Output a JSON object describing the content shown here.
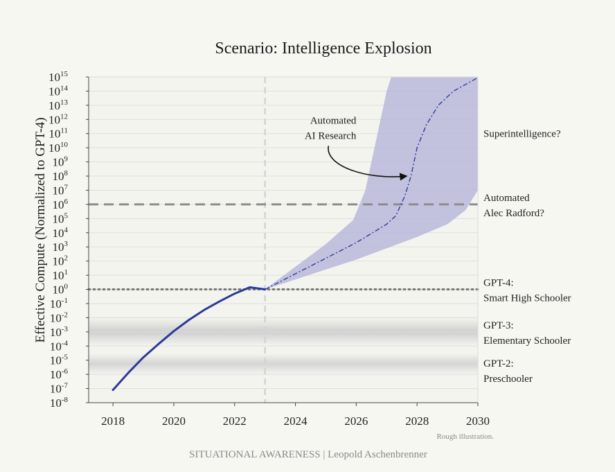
{
  "chart_data": {
    "type": "line",
    "title": "Scenario: Intelligence Explosion",
    "ylabel": "Effective Compute (Normalized to GPT-4)",
    "xlabel": "",
    "y_scale": "log10",
    "xlim": [
      2017.2,
      2030
    ],
    "ylim_exp": [
      -8,
      15
    ],
    "x_ticks": [
      "2018",
      "2020",
      "2022",
      "2024",
      "2026",
      "2028",
      "2030"
    ],
    "y_tick_base": "10",
    "y_tick_exponents": [
      "15",
      "14",
      "13",
      "12",
      "11",
      "10",
      "9",
      "8",
      "7",
      "6",
      "5",
      "4",
      "3",
      "2",
      "1",
      "0",
      "-1",
      "-2",
      "-3",
      "-4",
      "-5",
      "-6",
      "-7",
      "-8"
    ],
    "historical": {
      "name": "",
      "color": "#2b3a9a",
      "points": [
        [
          2018.0,
          -7.1
        ],
        [
          2018.5,
          -5.9
        ],
        [
          2019.0,
          -4.8
        ],
        [
          2019.5,
          -3.85
        ],
        [
          2020.0,
          -2.95
        ],
        [
          2020.5,
          -2.15
        ],
        [
          2021.0,
          -1.45
        ],
        [
          2021.5,
          -0.85
        ],
        [
          2022.0,
          -0.3
        ],
        [
          2022.5,
          0.15
        ],
        [
          2023.0,
          0.0
        ]
      ]
    },
    "projection": {
      "name": "",
      "color": "#2e3b9a",
      "points": [
        [
          2023.0,
          0.0
        ],
        [
          2024.0,
          1.1
        ],
        [
          2025.0,
          2.2
        ],
        [
          2026.0,
          3.3
        ],
        [
          2027.0,
          4.6
        ],
        [
          2027.3,
          5.2
        ],
        [
          2027.6,
          6.6
        ],
        [
          2027.8,
          8.0
        ],
        [
          2028.0,
          10.0
        ],
        [
          2028.3,
          11.6
        ],
        [
          2028.7,
          13.0
        ],
        [
          2029.2,
          14.0
        ],
        [
          2030.0,
          14.95
        ]
      ]
    },
    "band": {
      "color": "#b9b9da",
      "upper": [
        [
          2023.0,
          0.0
        ],
        [
          2024.0,
          1.6
        ],
        [
          2025.0,
          3.2
        ],
        [
          2025.9,
          4.9
        ],
        [
          2026.3,
          7.0
        ],
        [
          2026.7,
          11.0
        ],
        [
          2027.0,
          14.0
        ],
        [
          2027.15,
          15.0
        ],
        [
          2030.0,
          15.0
        ]
      ],
      "lower": [
        [
          2030.0,
          7.0
        ],
        [
          2029.6,
          5.6
        ],
        [
          2029.0,
          4.6
        ],
        [
          2028.0,
          3.7
        ],
        [
          2027.0,
          2.9
        ],
        [
          2026.0,
          2.1
        ],
        [
          2025.0,
          1.4
        ],
        [
          2024.0,
          0.7
        ],
        [
          2023.0,
          0.0
        ]
      ]
    },
    "reference_lines": [
      {
        "name": "automated-alec-radford",
        "exp": 6,
        "style": "dashed",
        "color": "#8c8c8c"
      },
      {
        "name": "gpt4",
        "exp": 0,
        "style": "dotted",
        "color": "#777777"
      },
      {
        "name": "now",
        "x": 2023.0,
        "style": "dashed",
        "color": "#d3d3d3"
      }
    ],
    "gray_bands": [
      {
        "name": "gpt3-band",
        "exp_low": -4.0,
        "exp_high": -2.0,
        "color": "#cfcfcf"
      },
      {
        "name": "gpt2-band",
        "exp_low": -6.0,
        "exp_high": -4.5,
        "color": "#d5d5d5"
      }
    ],
    "right_labels": [
      {
        "lines": [
          "Superintelligence?"
        ],
        "exp": 11
      },
      {
        "lines": [
          "Automated",
          "Alec Radford?"
        ],
        "exp": 6
      },
      {
        "lines": [
          "GPT-4:",
          "Smart High Schooler"
        ],
        "exp": 0
      },
      {
        "lines": [
          "GPT-3:",
          "Elementary Schooler"
        ],
        "exp": -3
      },
      {
        "lines": [
          "GPT-2:",
          "Preschooler"
        ],
        "exp": -5.7
      }
    ],
    "annotation": {
      "lines": [
        "Automated",
        "AI Research"
      ],
      "x": 2026.0,
      "exp": 11.7,
      "arrow_to": [
        2027.8,
        8.0
      ]
    },
    "grid": true
  },
  "footer": {
    "note": "Rough illustration.",
    "source": "SITUATIONAL AWARENESS | Leopold Aschenbrenner"
  }
}
